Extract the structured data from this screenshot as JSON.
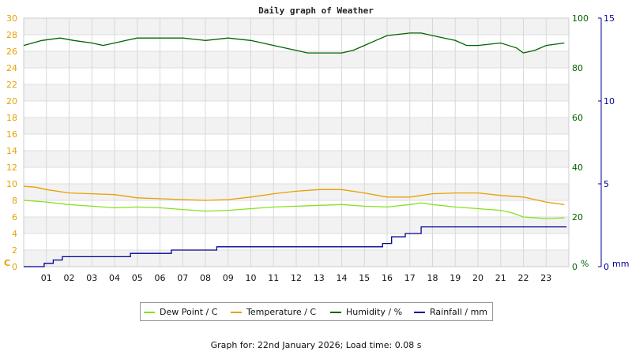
{
  "footer": {
    "text": "Graph for: 22nd January 2026; Load time: 0.08 s"
  },
  "chart_data": {
    "type": "line",
    "title": "Daily graph of Weather",
    "x_unit": "hour",
    "xlim": [
      0,
      24
    ],
    "x_ticks": [
      "01",
      "02",
      "03",
      "04",
      "05",
      "06",
      "07",
      "08",
      "09",
      "10",
      "11",
      "12",
      "13",
      "14",
      "15",
      "16",
      "17",
      "18",
      "19",
      "20",
      "21",
      "22",
      "23"
    ],
    "axes": {
      "left": {
        "label": "C",
        "range": [
          0,
          30
        ],
        "ticks": [
          "0",
          "2",
          "4",
          "6",
          "8",
          "10",
          "12",
          "14",
          "16",
          "18",
          "20",
          "22",
          "24",
          "26",
          "28",
          "30"
        ],
        "color": "#e8a000"
      },
      "right1": {
        "label": "%",
        "range": [
          0,
          100
        ],
        "ticks": [
          "0",
          "20",
          "40",
          "60",
          "80",
          "100"
        ],
        "color": "#006400"
      },
      "right2": {
        "label": "mm",
        "range": [
          0,
          15
        ],
        "ticks": [
          "0",
          "5",
          "10",
          "15"
        ],
        "color": "#000099"
      }
    },
    "grid": true,
    "legend": "bottom-center",
    "series": [
      {
        "name": "Dew Point / C",
        "axis": "left",
        "color": "#88e020",
        "x": [
          0,
          1,
          2,
          3,
          4,
          5,
          6,
          7,
          8,
          9,
          10,
          11,
          12,
          13,
          14,
          15,
          16,
          17,
          17.5,
          18,
          19,
          20,
          21,
          21.5,
          22,
          23,
          23.8
        ],
        "y": [
          8,
          7.8,
          7.5,
          7.3,
          7.1,
          7.2,
          7.1,
          6.9,
          6.7,
          6.8,
          7,
          7.2,
          7.3,
          7.4,
          7.5,
          7.3,
          7.2,
          7.5,
          7.7,
          7.5,
          7.2,
          7,
          6.8,
          6.5,
          6,
          5.8,
          5.9
        ]
      },
      {
        "name": "Temperature / C",
        "axis": "left",
        "color": "#e8a000",
        "x": [
          0,
          0.5,
          1,
          2,
          3,
          4,
          5,
          6,
          7,
          8,
          9,
          10,
          11,
          12,
          13,
          14,
          15,
          16,
          17,
          18,
          19,
          20,
          21,
          22,
          23,
          23.8
        ],
        "y": [
          9.7,
          9.6,
          9.3,
          8.9,
          8.8,
          8.7,
          8.3,
          8.2,
          8.1,
          8,
          8.1,
          8.4,
          8.8,
          9.1,
          9.3,
          9.3,
          8.9,
          8.4,
          8.4,
          8.8,
          8.9,
          8.9,
          8.6,
          8.4,
          7.8,
          7.5
        ]
      },
      {
        "name": "Humidity / %",
        "axis": "right1",
        "color": "#006400",
        "x": [
          0,
          0.8,
          1.6,
          2.2,
          3,
          3.5,
          4,
          4.5,
          5,
          6,
          7,
          8,
          9,
          10,
          11,
          11.5,
          12,
          12.5,
          13,
          14,
          14.5,
          15,
          15.5,
          16,
          17,
          17.5,
          18,
          19,
          19.5,
          20,
          21,
          21.7,
          22,
          22.5,
          23,
          23.8
        ],
        "y": [
          89,
          91,
          92,
          91,
          90,
          89,
          90,
          91,
          92,
          92,
          92,
          91,
          92,
          91,
          89,
          88,
          87,
          86,
          86,
          86,
          87,
          89,
          91,
          93,
          94,
          94,
          93,
          91,
          89,
          89,
          90,
          88,
          86,
          87,
          89,
          90
        ]
      },
      {
        "name": "Rainfall / mm",
        "axis": "right2",
        "color": "#000099",
        "step": true,
        "x": [
          0,
          0.9,
          1.3,
          1.7,
          2.5,
          3.5,
          4.7,
          5.5,
          6.5,
          7.5,
          8.5,
          9.5,
          10.5,
          11.5,
          12.5,
          13.5,
          14.5,
          15.5,
          15.8,
          16.2,
          16.8,
          17.5,
          18.5,
          19.5,
          20.5,
          21.5,
          22.5,
          23.9
        ],
        "y": [
          0,
          0.2,
          0.4,
          0.6,
          0.6,
          0.6,
          0.8,
          0.8,
          1,
          1,
          1.2,
          1.2,
          1.2,
          1.2,
          1.2,
          1.2,
          1.2,
          1.2,
          1.4,
          1.8,
          2,
          2.4,
          2.4,
          2.4,
          2.4,
          2.4,
          2.4,
          2.4
        ]
      }
    ]
  }
}
